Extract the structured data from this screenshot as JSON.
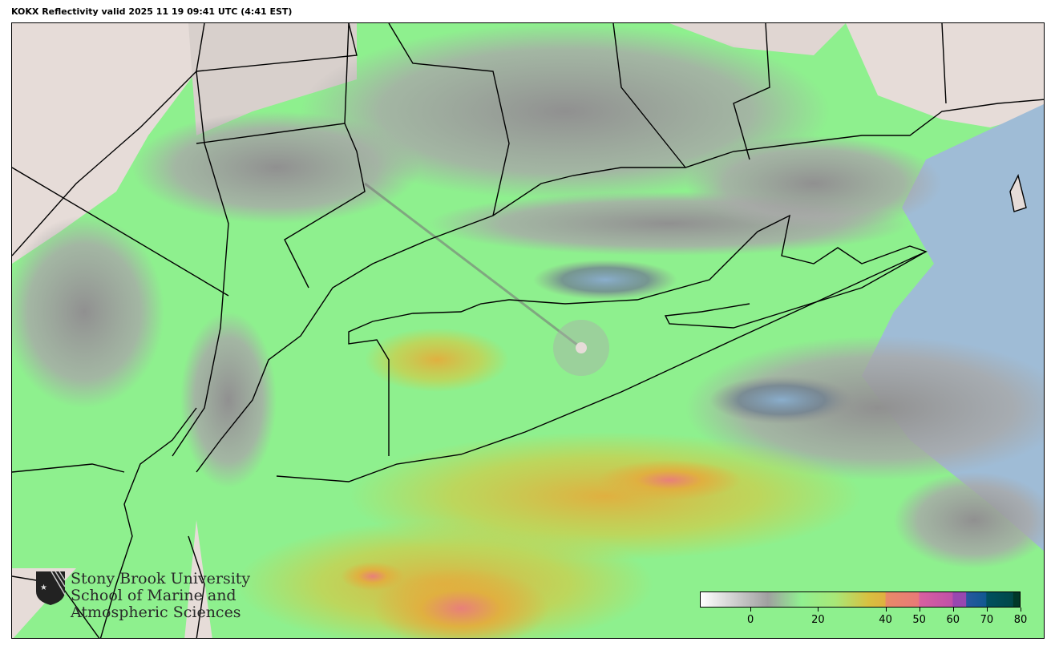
{
  "title": "KOKX Reflectivity valid 2025 11 19 09:41 UTC (4:41 EST)",
  "logo": {
    "line1": "Stony Brook University",
    "line2": "School of Marine and",
    "line3": "Atmospheric Sciences"
  },
  "colorbar": {
    "range": [
      -15,
      80
    ],
    "ticks": [
      "0",
      "20",
      "40",
      "50",
      "60",
      "70",
      "80"
    ],
    "tick_values": [
      0,
      20,
      40,
      50,
      60,
      70,
      80
    ],
    "stops": [
      {
        "value": -15,
        "color": "#ffffff"
      },
      {
        "value": 5,
        "color": "#a0a0a0"
      },
      {
        "value": 15,
        "color": "#90f090"
      },
      {
        "value": 25,
        "color": "#a8e878"
      },
      {
        "value": 35,
        "color": "#d8c040"
      },
      {
        "value": 40,
        "color": "#e0b040"
      },
      {
        "value": 40.1,
        "color": "#e88a68"
      },
      {
        "value": 50,
        "color": "#e87a78"
      },
      {
        "value": 50.1,
        "color": "#d860a0"
      },
      {
        "value": 60,
        "color": "#c050a8"
      },
      {
        "value": 60.1,
        "color": "#9848b0"
      },
      {
        "value": 64,
        "color": "#9848b0"
      },
      {
        "value": 64.1,
        "color": "#2858a0"
      },
      {
        "value": 70,
        "color": "#105890"
      },
      {
        "value": 70.1,
        "color": "#005060"
      },
      {
        "value": 78,
        "color": "#004848"
      },
      {
        "value": 78.1,
        "color": "#003828"
      }
    ]
  },
  "colors": {
    "ocean": "#9fbcd6",
    "terrain": "#e6dcd8",
    "echo_light": "#8ef08e",
    "echo_moderate": "#e0b040",
    "echo_heavy": "#e8807a",
    "echo_weak": "#a0a0a0"
  }
}
